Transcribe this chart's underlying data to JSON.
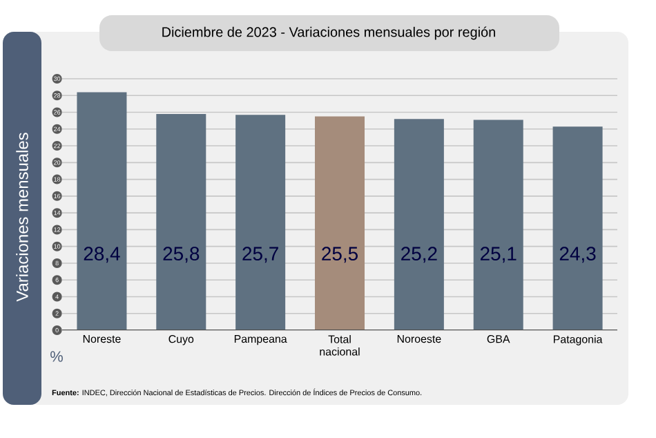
{
  "chart_data": {
    "type": "bar",
    "title": "Diciembre de 2023 - Variaciones mensuales por región",
    "ylabel": "Variaciones  mensuales",
    "categories": [
      "Noreste",
      "Cuyo",
      "Pampeana",
      "Total nacional",
      "Noroeste",
      "GBA",
      "Patagonia"
    ],
    "values": [
      28.4,
      25.8,
      25.7,
      25.5,
      25.2,
      25.1,
      24.3
    ],
    "value_labels": [
      "28,4",
      "25,8",
      "25,7",
      "25,5",
      "25,2",
      "25,1",
      "24,3"
    ],
    "colors": [
      "#5f7181",
      "#5f7181",
      "#5f7181",
      "#a58c7b",
      "#5f7181",
      "#5f7181",
      "#5f7181"
    ],
    "ylim": [
      0,
      30
    ],
    "yticks": [
      0,
      2,
      4,
      6,
      8,
      10,
      12,
      14,
      16,
      18,
      20,
      22,
      24,
      26,
      28,
      30
    ],
    "grid": "y",
    "annotations": [
      "%",
      "**Fuente:** INDEC, Dirección Nacional de Estadísticas de Precios. Dirección de Índices de Precios de Consumo."
    ]
  }
}
